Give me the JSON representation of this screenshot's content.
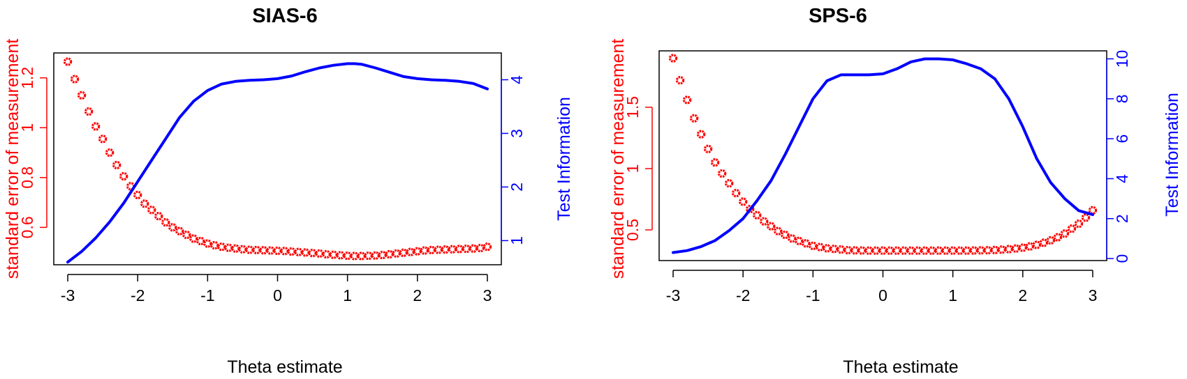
{
  "chart_data": [
    {
      "type": "line",
      "title": "SIAS-6",
      "xlabel": "Theta estimate",
      "ylabel_left": "standard error of measurement",
      "ylabel_right": "Test Information",
      "x_ticks": [
        "-3",
        "-2",
        "-1",
        "0",
        "1",
        "2",
        "3"
      ],
      "xlim": [
        -3.2,
        3.2
      ],
      "y_left_ticks": [
        0.6,
        0.8,
        1,
        1.2
      ],
      "y_left_tick_labels": [
        "0.6",
        "0.8",
        "1",
        "1.2"
      ],
      "y_left_lim": [
        0.45,
        1.3
      ],
      "y_right_ticks": [
        1,
        2,
        3,
        4
      ],
      "y_right_tick_labels": [
        "1",
        "2",
        "3",
        "4"
      ],
      "y_right_lim": [
        0.55,
        4.5
      ],
      "left_color": "#ff0000",
      "right_color": "#0000ff",
      "series": [
        {
          "axis": "left",
          "style": "open-circles",
          "color": "#ff0000",
          "x": [
            -3.0,
            -2.9,
            -2.8,
            -2.7,
            -2.6,
            -2.5,
            -2.4,
            -2.3,
            -2.2,
            -2.1,
            -2.0,
            -1.9,
            -1.8,
            -1.7,
            -1.6,
            -1.5,
            -1.4,
            -1.3,
            -1.2,
            -1.1,
            -1.0,
            -0.9,
            -0.8,
            -0.7,
            -0.6,
            -0.5,
            -0.4,
            -0.3,
            -0.2,
            -0.1,
            0.0,
            0.1,
            0.2,
            0.3,
            0.4,
            0.5,
            0.6,
            0.7,
            0.8,
            0.9,
            1.0,
            1.1,
            1.2,
            1.3,
            1.4,
            1.5,
            1.6,
            1.7,
            1.8,
            1.9,
            2.0,
            2.1,
            2.2,
            2.3,
            2.4,
            2.5,
            2.6,
            2.7,
            2.8,
            2.9,
            3.0
          ],
          "y": [
            1.265,
            1.195,
            1.13,
            1.065,
            1.005,
            0.955,
            0.9,
            0.85,
            0.805,
            0.765,
            0.73,
            0.695,
            0.67,
            0.645,
            0.62,
            0.6,
            0.585,
            0.57,
            0.555,
            0.545,
            0.535,
            0.528,
            0.522,
            0.518,
            0.515,
            0.512,
            0.51,
            0.509,
            0.508,
            0.507,
            0.506,
            0.505,
            0.503,
            0.501,
            0.499,
            0.497,
            0.495,
            0.492,
            0.49,
            0.488,
            0.486,
            0.485,
            0.485,
            0.486,
            0.487,
            0.489,
            0.492,
            0.495,
            0.498,
            0.501,
            0.504,
            0.507,
            0.509,
            0.51,
            0.511,
            0.512,
            0.513,
            0.514,
            0.515,
            0.517,
            0.522
          ]
        },
        {
          "axis": "right",
          "style": "line",
          "color": "#0000ff",
          "x": [
            -3.0,
            -2.8,
            -2.6,
            -2.4,
            -2.2,
            -2.0,
            -1.8,
            -1.6,
            -1.4,
            -1.2,
            -1.0,
            -0.8,
            -0.6,
            -0.4,
            -0.2,
            0.0,
            0.2,
            0.4,
            0.6,
            0.8,
            1.0,
            1.1,
            1.2,
            1.4,
            1.6,
            1.8,
            2.0,
            2.2,
            2.4,
            2.6,
            2.8,
            3.0
          ],
          "y": [
            0.6,
            0.8,
            1.05,
            1.35,
            1.7,
            2.1,
            2.5,
            2.9,
            3.3,
            3.6,
            3.8,
            3.92,
            3.97,
            3.99,
            4.0,
            4.02,
            4.07,
            4.15,
            4.22,
            4.27,
            4.3,
            4.3,
            4.29,
            4.22,
            4.14,
            4.06,
            4.02,
            4.0,
            3.99,
            3.97,
            3.93,
            3.83
          ]
        }
      ]
    },
    {
      "type": "line",
      "title": "SPS-6",
      "xlabel": "Theta estimate",
      "ylabel_left": "standard error of measurement",
      "ylabel_right": "Test Information",
      "x_ticks": [
        "-3",
        "-2",
        "-1",
        "0",
        "1",
        "2",
        "3"
      ],
      "xlim": [
        -3.2,
        3.2
      ],
      "y_left_ticks": [
        0.5,
        1,
        1.5
      ],
      "y_left_tick_labels": [
        "0.5",
        "1",
        "1.5"
      ],
      "y_left_lim": [
        0.25,
        1.96
      ],
      "y_right_ticks": [
        0,
        2,
        4,
        6,
        8,
        10
      ],
      "y_right_tick_labels": [
        "0",
        "2",
        "4",
        "6",
        "8",
        "10"
      ],
      "y_right_lim": [
        -0.1,
        10.4
      ],
      "left_color": "#ff0000",
      "right_color": "#0000ff",
      "series": [
        {
          "axis": "left",
          "style": "open-circles",
          "color": "#ff0000",
          "x": [
            -3.0,
            -2.9,
            -2.8,
            -2.7,
            -2.6,
            -2.5,
            -2.4,
            -2.3,
            -2.2,
            -2.1,
            -2.0,
            -1.9,
            -1.8,
            -1.7,
            -1.6,
            -1.5,
            -1.4,
            -1.3,
            -1.2,
            -1.1,
            -1.0,
            -0.9,
            -0.8,
            -0.7,
            -0.6,
            -0.5,
            -0.4,
            -0.3,
            -0.2,
            -0.1,
            0.0,
            0.1,
            0.2,
            0.3,
            0.4,
            0.5,
            0.6,
            0.7,
            0.8,
            0.9,
            1.0,
            1.1,
            1.2,
            1.3,
            1.4,
            1.5,
            1.6,
            1.7,
            1.8,
            1.9,
            2.0,
            2.1,
            2.2,
            2.3,
            2.4,
            2.5,
            2.6,
            2.7,
            2.8,
            2.9,
            3.0
          ],
          "y": [
            1.9,
            1.72,
            1.56,
            1.41,
            1.28,
            1.16,
            1.05,
            0.96,
            0.88,
            0.8,
            0.73,
            0.67,
            0.62,
            0.57,
            0.53,
            0.49,
            0.46,
            0.43,
            0.41,
            0.39,
            0.37,
            0.36,
            0.35,
            0.345,
            0.34,
            0.335,
            0.333,
            0.332,
            0.331,
            0.331,
            0.331,
            0.331,
            0.331,
            0.331,
            0.331,
            0.331,
            0.331,
            0.331,
            0.331,
            0.331,
            0.331,
            0.331,
            0.331,
            0.332,
            0.333,
            0.334,
            0.336,
            0.339,
            0.343,
            0.348,
            0.355,
            0.365,
            0.378,
            0.395,
            0.415,
            0.44,
            0.47,
            0.51,
            0.55,
            0.6,
            0.66
          ]
        },
        {
          "axis": "right",
          "style": "line",
          "color": "#0000ff",
          "x": [
            -3.0,
            -2.8,
            -2.6,
            -2.4,
            -2.2,
            -2.0,
            -1.8,
            -1.6,
            -1.4,
            -1.2,
            -1.0,
            -0.8,
            -0.6,
            -0.4,
            -0.2,
            0.0,
            0.2,
            0.4,
            0.6,
            0.8,
            1.0,
            1.2,
            1.4,
            1.6,
            1.8,
            2.0,
            2.2,
            2.4,
            2.6,
            2.8,
            3.0
          ],
          "y": [
            0.3,
            0.4,
            0.6,
            0.9,
            1.4,
            2.0,
            2.9,
            3.9,
            5.2,
            6.6,
            8.0,
            8.9,
            9.2,
            9.2,
            9.2,
            9.25,
            9.5,
            9.85,
            10.0,
            10.0,
            9.95,
            9.75,
            9.5,
            9.0,
            8.0,
            6.6,
            5.0,
            3.8,
            3.0,
            2.4,
            2.2
          ]
        }
      ]
    }
  ]
}
